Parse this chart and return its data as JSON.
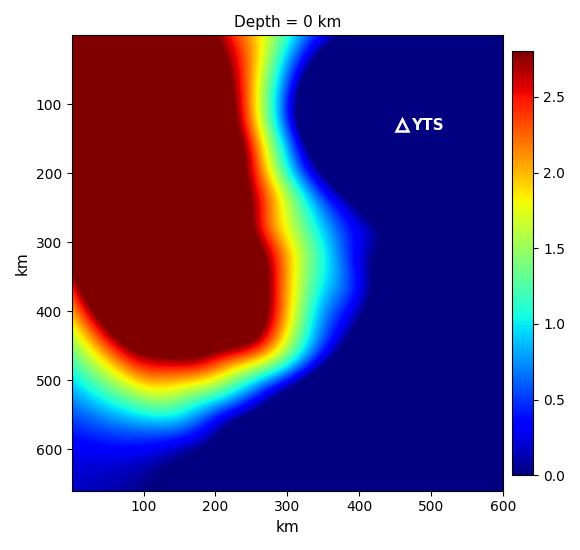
{
  "title": "Depth = 0 km",
  "xlabel": "km",
  "ylabel": "km",
  "xlim": [
    0,
    600
  ],
  "ylim": [
    0,
    660
  ],
  "xticks": [
    100,
    200,
    300,
    400,
    500,
    600
  ],
  "yticks": [
    100,
    200,
    300,
    400,
    500,
    600
  ],
  "cbar_ticks": [
    0,
    0.5,
    1,
    1.5,
    2,
    2.5
  ],
  "vmin": 0,
  "vmax": 2.8,
  "station_x": 460,
  "station_y": 130,
  "station_label": "YTS",
  "nx": 200,
  "ny": 220,
  "colormap": "jet"
}
